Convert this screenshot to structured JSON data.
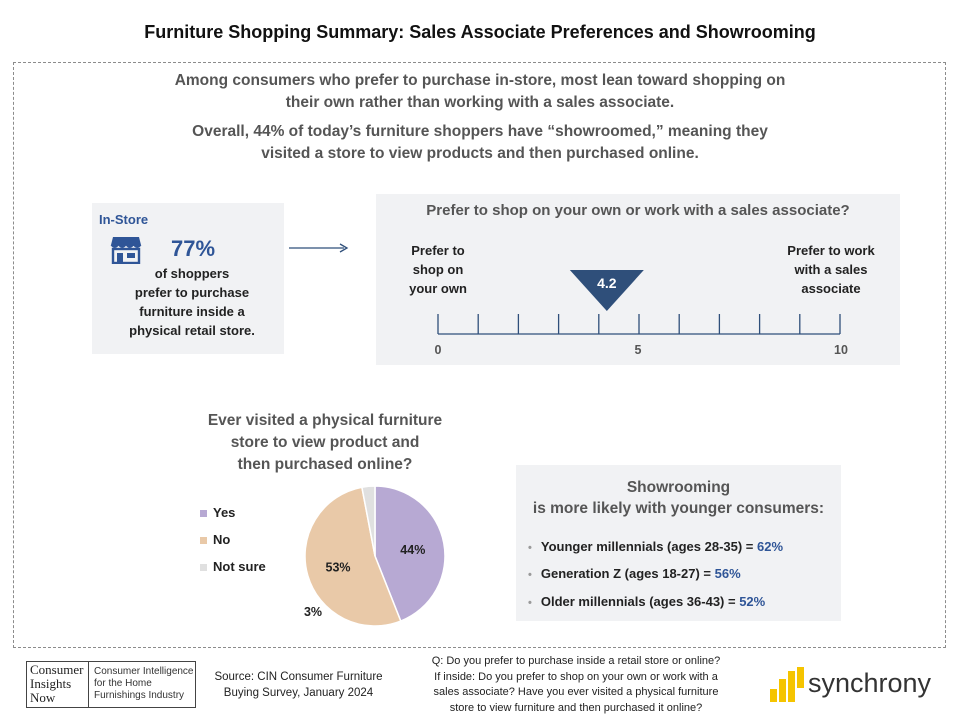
{
  "title": "Furniture Shopping Summary: Sales Associate Preferences and Showrooming",
  "intro": {
    "line1a": "Among consumers who prefer to purchase in-store, most lean toward shopping on",
    "line1b": "their own rather than working with a sales associate.",
    "line2a": "Overall, 44% of today’s furniture shoppers have “showroomed,” meaning they",
    "line2b": "visited a store to view products and then purchased online."
  },
  "instore": {
    "label": "In-Store",
    "percent": "77%",
    "line1": "of shoppers",
    "line2": "prefer to purchase",
    "line3": "furniture inside a",
    "line4": "physical retail store.",
    "icon": "store-icon"
  },
  "scale": {
    "question": "Prefer to shop on your own or work with a sales associate?",
    "left_label": [
      "Prefer to",
      "shop on",
      "your own"
    ],
    "right_label": [
      "Prefer to work",
      "with a sales",
      "associate"
    ],
    "tick_labels": [
      "0",
      "5",
      "10"
    ],
    "min": 0,
    "max": 10,
    "marker_value": 4.2,
    "marker_label": "4.2",
    "marker_color": "#2f4f7a"
  },
  "chart_data": {
    "type": "pie",
    "title": "Ever visited a physical furniture store to view product and then purchased online?",
    "title_lines": [
      "Ever visited a physical furniture",
      "store to view product and",
      "then purchased online?"
    ],
    "categories": [
      "Yes",
      "No",
      "Not sure"
    ],
    "values": [
      44,
      53,
      3
    ],
    "labels": [
      "44%",
      "53%",
      "3%"
    ],
    "colors": [
      "#b7a9d3",
      "#e9c9a8",
      "#e0e0e0"
    ],
    "legend_position": "left"
  },
  "showrooming": {
    "title1": "Showrooming",
    "title2": "is more likely with younger consumers:",
    "items": [
      {
        "label": "Younger millennials (ages 28-35) = ",
        "value": "62%"
      },
      {
        "label": "Generation Z (ages 18-27) = ",
        "value": "56%"
      },
      {
        "label": "Older millennials (ages 36-43) = ",
        "value": "52%"
      }
    ]
  },
  "footer": {
    "logo_left": [
      "Consumer",
      "Insights",
      "Now"
    ],
    "logo_right": [
      "Consumer Intelligence",
      "for the Home",
      "Furnishings Industry"
    ],
    "source_line1": "Source:  CIN Consumer Furniture",
    "source_line2": "Buying Survey, January 2024",
    "question_lines": [
      "Q: Do you prefer to purchase inside a retail store or online?",
      "If inside: Do you prefer to shop on your own or work with a",
      "sales associate? Have you ever visited a physical furniture",
      "store to view furniture and then purchased it online?"
    ],
    "brand": "synchrony"
  },
  "colors": {
    "accent_blue": "#2f5597",
    "panel_gray": "#f1f2f4",
    "brand_yellow": "#f5c400"
  }
}
